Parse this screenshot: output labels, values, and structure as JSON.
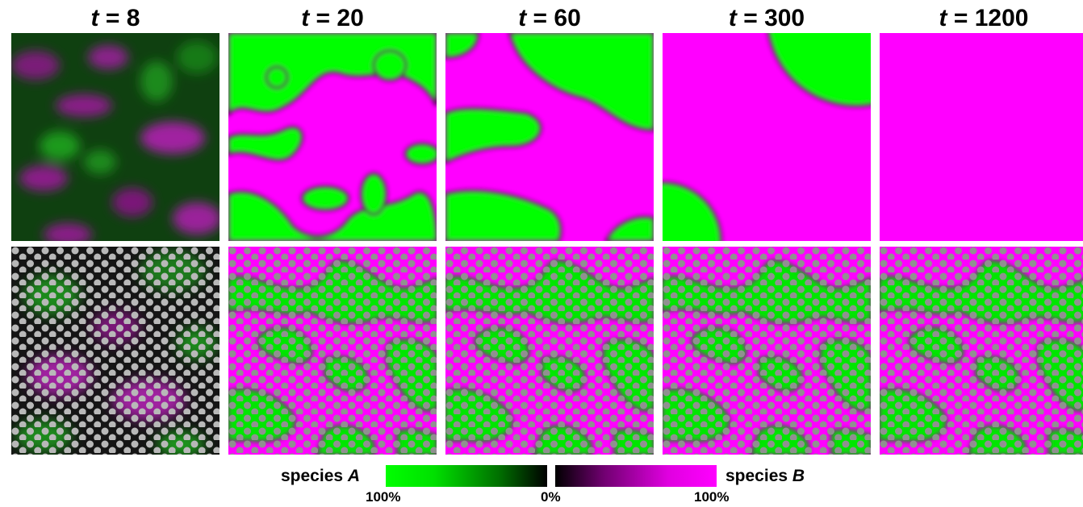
{
  "timepoints": [
    {
      "var": "t",
      "value": "8"
    },
    {
      "var": "t",
      "value": "20"
    },
    {
      "var": "t",
      "value": "60"
    },
    {
      "var": "t",
      "value": "300"
    },
    {
      "var": "t",
      "value": "1200"
    }
  ],
  "colors": {
    "species_a": "#00ff00",
    "species_b": "#ff00ff",
    "zero": "#000000",
    "obstacle": "#9a9a9a"
  },
  "legend": {
    "species_a_label": "species",
    "species_a_var": "A",
    "species_b_label": "species",
    "species_b_var": "B",
    "left_pct": "100%",
    "mid_pct": "0%",
    "right_pct": "100%"
  }
}
